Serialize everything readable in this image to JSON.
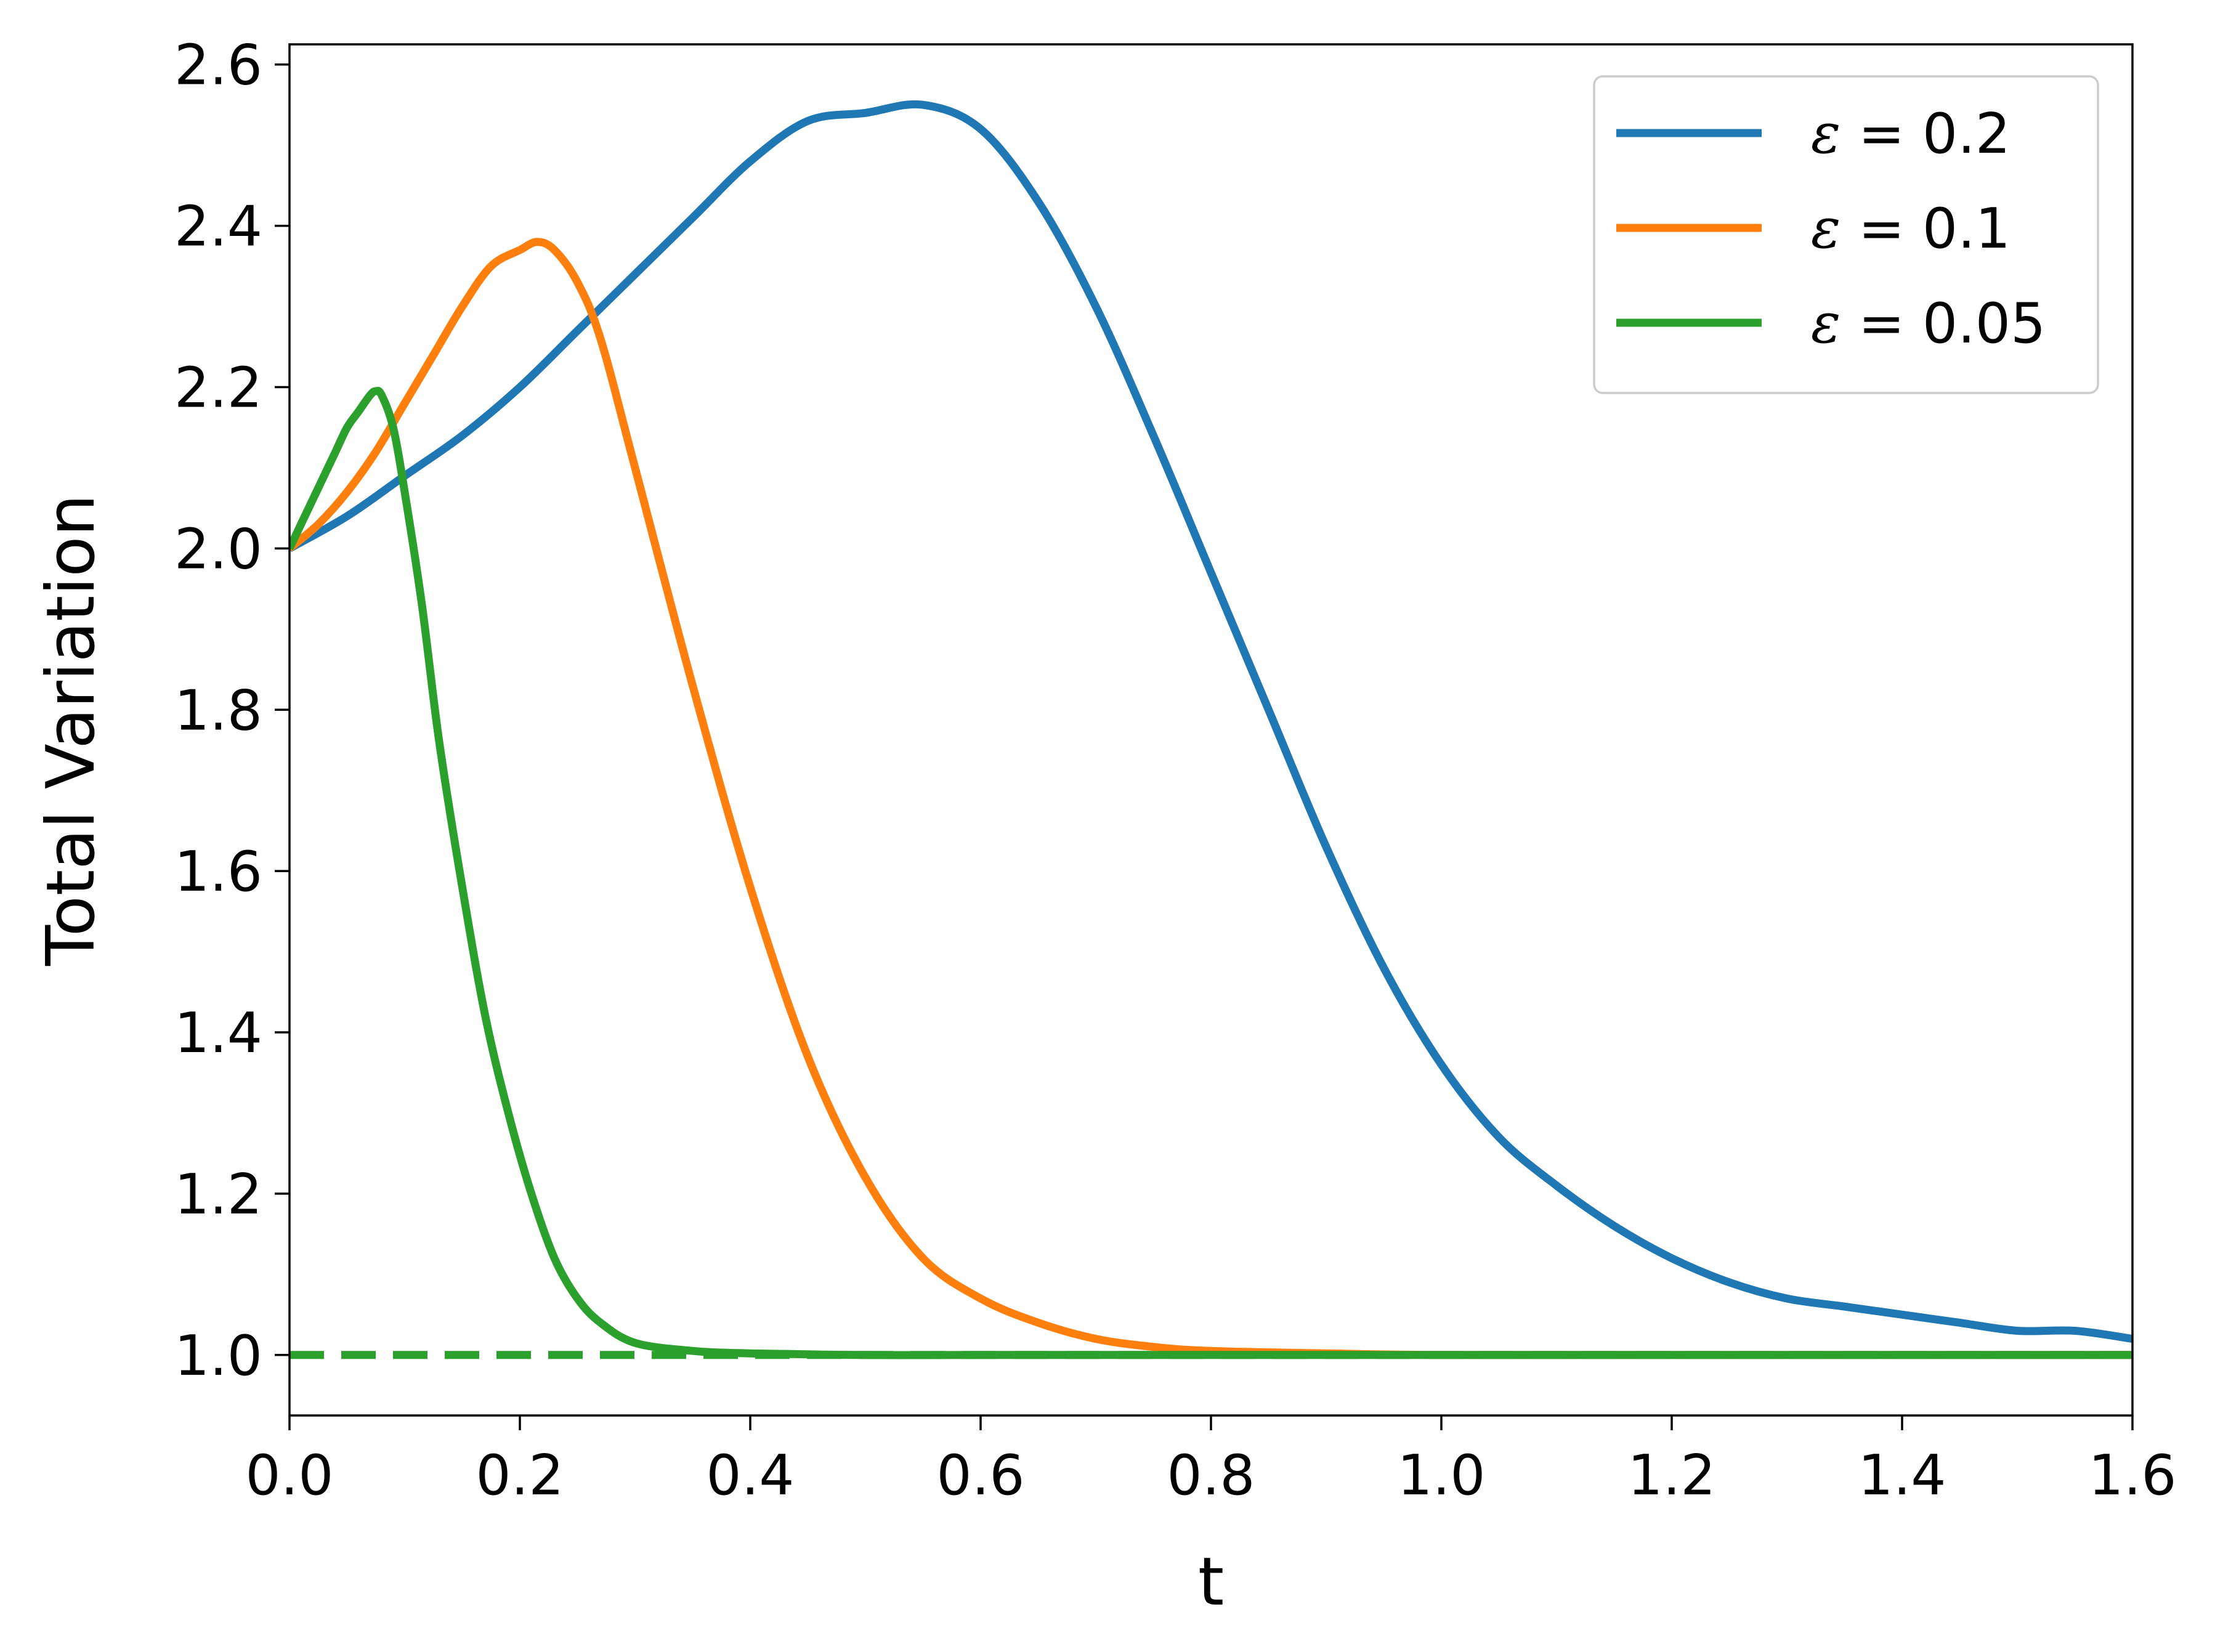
{
  "chart_data": {
    "type": "line",
    "title": "",
    "xlabel": "t",
    "ylabel": "Total Variation",
    "xlim": [
      0.0,
      1.6
    ],
    "ylim": [
      0.925,
      2.625
    ],
    "xticks": [
      "0.0",
      "0.2",
      "0.4",
      "0.6",
      "0.8",
      "1.0",
      "1.2",
      "1.4",
      "1.6"
    ],
    "yticks": [
      "1.0",
      "1.2",
      "1.4",
      "1.6",
      "1.8",
      "2.0",
      "2.2",
      "2.4",
      "2.6"
    ],
    "grid": false,
    "legend_position": "top-right",
    "series": [
      {
        "name": "ε = 0.2",
        "color": "#1f77b4",
        "x": [
          0.0,
          0.05,
          0.1,
          0.15,
          0.2,
          0.25,
          0.3,
          0.35,
          0.4,
          0.45,
          0.5,
          0.55,
          0.6,
          0.65,
          0.7,
          0.75,
          0.8,
          0.85,
          0.9,
          0.95,
          1.0,
          1.05,
          1.1,
          1.15,
          1.2,
          1.25,
          1.3,
          1.35,
          1.4,
          1.45,
          1.5,
          1.55,
          1.6
        ],
        "y": [
          2.0,
          2.04,
          2.09,
          2.14,
          2.2,
          2.27,
          2.34,
          2.41,
          2.48,
          2.53,
          2.54,
          2.55,
          2.52,
          2.43,
          2.3,
          2.14,
          1.97,
          1.8,
          1.63,
          1.48,
          1.36,
          1.27,
          1.21,
          1.16,
          1.12,
          1.09,
          1.07,
          1.06,
          1.05,
          1.04,
          1.03,
          1.03,
          1.02
        ]
      },
      {
        "name": "ε = 0.1",
        "color": "#ff7f0e",
        "x": [
          0.0,
          0.025,
          0.05,
          0.075,
          0.1,
          0.125,
          0.15,
          0.175,
          0.2,
          0.215,
          0.23,
          0.25,
          0.27,
          0.3,
          0.35,
          0.4,
          0.45,
          0.5,
          0.55,
          0.6,
          0.65,
          0.7,
          0.75,
          0.8,
          0.9,
          1.0,
          1.2,
          1.6
        ],
        "y": [
          2.0,
          2.03,
          2.07,
          2.12,
          2.18,
          2.24,
          2.3,
          2.35,
          2.37,
          2.38,
          2.37,
          2.33,
          2.26,
          2.1,
          1.83,
          1.58,
          1.37,
          1.22,
          1.12,
          1.07,
          1.04,
          1.02,
          1.01,
          1.005,
          1.002,
          1.0,
          1.0,
          1.0
        ]
      },
      {
        "name": "ε = 0.05",
        "color": "#2ca02c",
        "x": [
          0.0,
          0.01,
          0.02,
          0.03,
          0.04,
          0.05,
          0.06,
          0.07,
          0.075,
          0.08,
          0.09,
          0.1,
          0.115,
          0.13,
          0.15,
          0.17,
          0.19,
          0.21,
          0.23,
          0.25,
          0.27,
          0.3,
          0.35,
          0.4,
          0.5,
          0.6,
          0.8,
          1.0,
          1.6
        ],
        "y": [
          2.0,
          2.03,
          2.06,
          2.09,
          2.12,
          2.15,
          2.17,
          2.19,
          2.195,
          2.19,
          2.15,
          2.07,
          1.93,
          1.76,
          1.58,
          1.42,
          1.3,
          1.2,
          1.12,
          1.07,
          1.04,
          1.015,
          1.005,
          1.002,
          1.0,
          1.0,
          1.0,
          1.0,
          1.0
        ]
      }
    ],
    "reference_line": {
      "y": 1.0,
      "style": "dashed",
      "color": "#2ca02c"
    }
  }
}
